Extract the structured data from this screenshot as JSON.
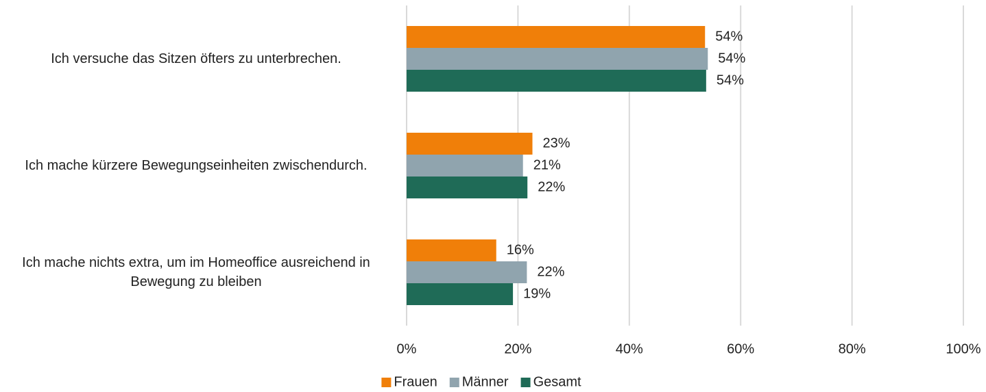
{
  "chart_data": {
    "type": "bar",
    "orientation": "horizontal",
    "categories": [
      "Ich versuche das Sitzen öfters zu unterbrechen.",
      "Ich mache kürzere Bewegungseinheiten zwischendurch.",
      "Ich mache nichts extra, um im Homeoffice ausreichend in Bewegung zu bleiben"
    ],
    "series": [
      {
        "name": "Frauen",
        "color": "#f07f09",
        "values": [
          53.6,
          22.6,
          16.1
        ],
        "value_labels": [
          "54%",
          "23%",
          "16%"
        ]
      },
      {
        "name": "Männer",
        "color": "#90a4ae",
        "values": [
          54.1,
          20.9,
          21.6
        ],
        "value_labels": [
          "54%",
          "21%",
          "22%"
        ]
      },
      {
        "name": "Gesamt",
        "color": "#1f6b57",
        "values": [
          53.8,
          21.7,
          19.1
        ],
        "value_labels": [
          "54%",
          "22%",
          "19%"
        ]
      }
    ],
    "xlim": [
      0,
      100
    ],
    "xticks": [
      {
        "value": 0,
        "label": "0%"
      },
      {
        "value": 20,
        "label": "20%"
      },
      {
        "value": 40,
        "label": "40%"
      },
      {
        "value": 60,
        "label": "60%"
      },
      {
        "value": 80,
        "label": "80%"
      },
      {
        "value": 100,
        "label": "100%"
      }
    ],
    "grid": true,
    "legend": "bottom"
  }
}
